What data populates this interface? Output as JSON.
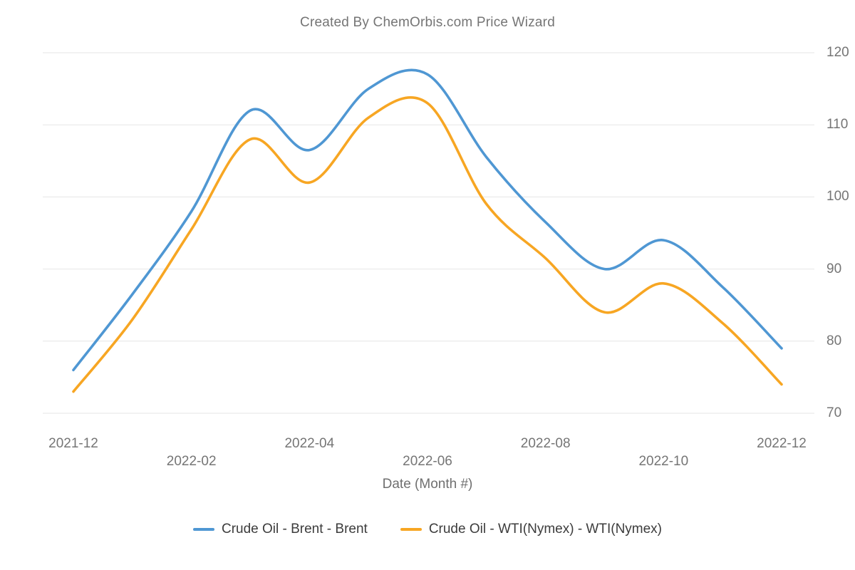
{
  "chart_data": {
    "type": "line",
    "title": "Created By ChemOrbis.com Price Wizard",
    "xlabel": "Date (Month #)",
    "ylabel": "",
    "categories": [
      "2021-12",
      "2022-01",
      "2022-02",
      "2022-03",
      "2022-04",
      "2022-05",
      "2022-06",
      "2022-07",
      "2022-08",
      "2022-09",
      "2022-10",
      "2022-11",
      "2022-12"
    ],
    "series": [
      {
        "name": "Crude Oil - Brent - Brent",
        "color": "#4F97D3",
        "values": [
          76,
          86.5,
          98,
          112,
          106.5,
          115,
          117,
          105.5,
          96.5,
          90,
          94,
          87.5,
          79
        ]
      },
      {
        "name": "Crude Oil - WTI(Nymex) - WTI(Nymex)",
        "color": "#F7A623",
        "values": [
          73,
          83,
          95.5,
          108,
          102,
          111,
          113,
          99,
          91.5,
          84,
          88,
          82.5,
          74
        ]
      }
    ],
    "ylim": [
      70,
      120
    ],
    "y_ticks": [
      70,
      80,
      90,
      100,
      110,
      120
    ],
    "x_tick_labels": [
      "2021-12",
      "2022-02",
      "2022-04",
      "2022-06",
      "2022-08",
      "2022-10",
      "2022-12"
    ],
    "grid": "horizontal-only",
    "legend_position": "bottom"
  },
  "colors": {
    "background": "#ffffff",
    "gridline": "#e6e6e6",
    "title_text": "#757575",
    "axis_text": "#757575",
    "legend_text": "#3c3c3c"
  }
}
